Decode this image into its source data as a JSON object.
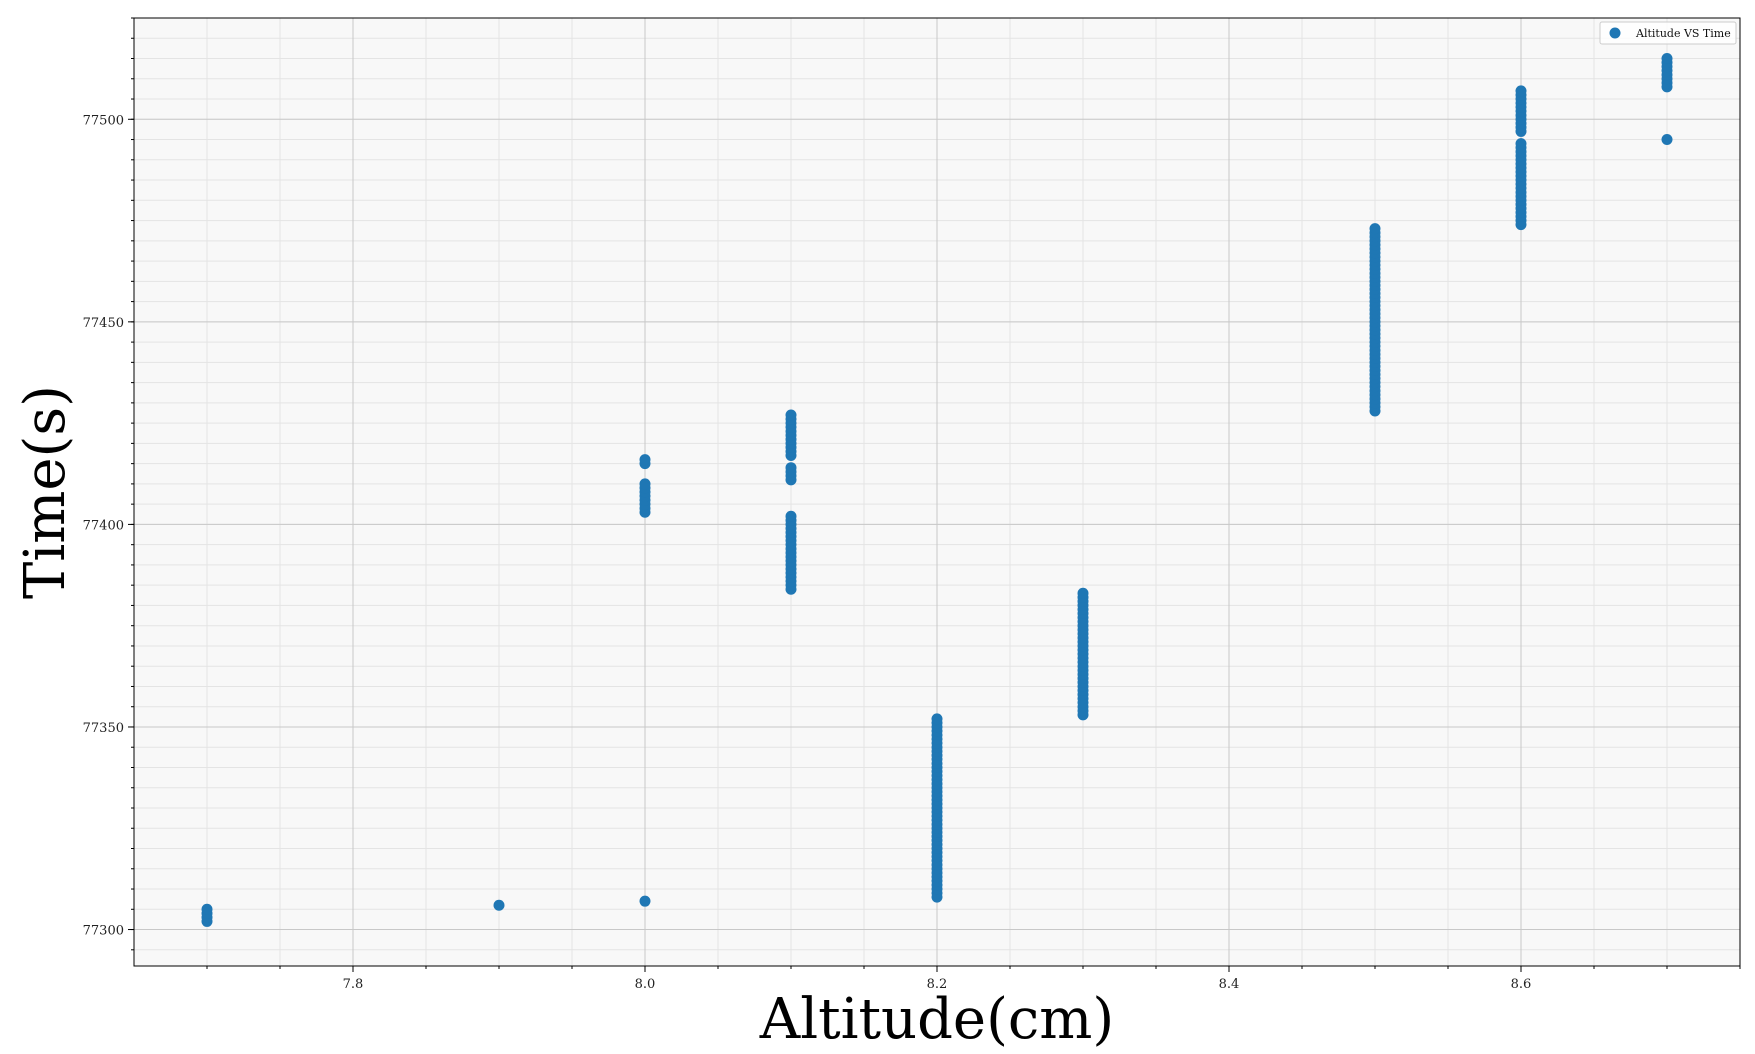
{
  "chart_data": {
    "type": "scatter",
    "title": "",
    "xlabel": "Altitude(cm)",
    "ylabel": "Time(s)",
    "xlim": [
      7.65,
      8.75
    ],
    "ylim": [
      77291,
      77525
    ],
    "xticks": [
      7.8,
      8.0,
      8.2,
      8.4,
      8.6
    ],
    "xtick_labels": [
      "7.8",
      "8.0",
      "8.2",
      "8.4",
      "8.6"
    ],
    "yticks": [
      77300,
      77350,
      77400,
      77450,
      77500
    ],
    "ytick_labels": [
      "77300",
      "77350",
      "77400",
      "77450",
      "77500"
    ],
    "grid": true,
    "minor_grid": true,
    "legend": {
      "position": "top-right",
      "entries": [
        "Altitude VS Time"
      ]
    },
    "colors": {
      "series": "#1f77b4",
      "background": "#f8f8f8",
      "grid_major": "#c8c8c8",
      "grid_minor": "#e4e4e4"
    },
    "series": [
      {
        "name": "Altitude VS Time",
        "points": [
          [
            7.7,
            77302
          ],
          [
            7.7,
            77303
          ],
          [
            7.7,
            77304
          ],
          [
            7.7,
            77305
          ],
          [
            7.9,
            77306
          ],
          [
            8.0,
            77307
          ],
          [
            8.0,
            77403
          ],
          [
            8.0,
            77404
          ],
          [
            8.0,
            77405
          ],
          [
            8.0,
            77406
          ],
          [
            8.0,
            77407
          ],
          [
            8.0,
            77408
          ],
          [
            8.0,
            77409
          ],
          [
            8.0,
            77410
          ],
          [
            8.0,
            77415
          ],
          [
            8.0,
            77416
          ],
          [
            8.1,
            77384
          ],
          [
            8.1,
            77385
          ],
          [
            8.1,
            77386
          ],
          [
            8.1,
            77387
          ],
          [
            8.1,
            77388
          ],
          [
            8.1,
            77389
          ],
          [
            8.1,
            77390
          ],
          [
            8.1,
            77391
          ],
          [
            8.1,
            77392
          ],
          [
            8.1,
            77393
          ],
          [
            8.1,
            77394
          ],
          [
            8.1,
            77395
          ],
          [
            8.1,
            77396
          ],
          [
            8.1,
            77397
          ],
          [
            8.1,
            77398
          ],
          [
            8.1,
            77399
          ],
          [
            8.1,
            77400
          ],
          [
            8.1,
            77401
          ],
          [
            8.1,
            77402
          ],
          [
            8.1,
            77411
          ],
          [
            8.1,
            77412
          ],
          [
            8.1,
            77413
          ],
          [
            8.1,
            77414
          ],
          [
            8.1,
            77417
          ],
          [
            8.1,
            77418
          ],
          [
            8.1,
            77419
          ],
          [
            8.1,
            77420
          ],
          [
            8.1,
            77421
          ],
          [
            8.1,
            77422
          ],
          [
            8.1,
            77423
          ],
          [
            8.1,
            77424
          ],
          [
            8.1,
            77425
          ],
          [
            8.1,
            77426
          ],
          [
            8.1,
            77427
          ],
          [
            8.2,
            77308
          ],
          [
            8.2,
            77309
          ],
          [
            8.2,
            77310
          ],
          [
            8.2,
            77311
          ],
          [
            8.2,
            77312
          ],
          [
            8.2,
            77313
          ],
          [
            8.2,
            77314
          ],
          [
            8.2,
            77315
          ],
          [
            8.2,
            77316
          ],
          [
            8.2,
            77317
          ],
          [
            8.2,
            77318
          ],
          [
            8.2,
            77319
          ],
          [
            8.2,
            77320
          ],
          [
            8.2,
            77321
          ],
          [
            8.2,
            77322
          ],
          [
            8.2,
            77323
          ],
          [
            8.2,
            77324
          ],
          [
            8.2,
            77325
          ],
          [
            8.2,
            77326
          ],
          [
            8.2,
            77327
          ],
          [
            8.2,
            77328
          ],
          [
            8.2,
            77329
          ],
          [
            8.2,
            77330
          ],
          [
            8.2,
            77331
          ],
          [
            8.2,
            77332
          ],
          [
            8.2,
            77333
          ],
          [
            8.2,
            77334
          ],
          [
            8.2,
            77335
          ],
          [
            8.2,
            77336
          ],
          [
            8.2,
            77337
          ],
          [
            8.2,
            77338
          ],
          [
            8.2,
            77339
          ],
          [
            8.2,
            77340
          ],
          [
            8.2,
            77341
          ],
          [
            8.2,
            77342
          ],
          [
            8.2,
            77343
          ],
          [
            8.2,
            77344
          ],
          [
            8.2,
            77345
          ],
          [
            8.2,
            77346
          ],
          [
            8.2,
            77347
          ],
          [
            8.2,
            77348
          ],
          [
            8.2,
            77349
          ],
          [
            8.2,
            77350
          ],
          [
            8.2,
            77351
          ],
          [
            8.2,
            77352
          ],
          [
            8.3,
            77353
          ],
          [
            8.3,
            77354
          ],
          [
            8.3,
            77355
          ],
          [
            8.3,
            77356
          ],
          [
            8.3,
            77357
          ],
          [
            8.3,
            77358
          ],
          [
            8.3,
            77359
          ],
          [
            8.3,
            77360
          ],
          [
            8.3,
            77361
          ],
          [
            8.3,
            77362
          ],
          [
            8.3,
            77363
          ],
          [
            8.3,
            77364
          ],
          [
            8.3,
            77365
          ],
          [
            8.3,
            77366
          ],
          [
            8.3,
            77367
          ],
          [
            8.3,
            77368
          ],
          [
            8.3,
            77369
          ],
          [
            8.3,
            77370
          ],
          [
            8.3,
            77371
          ],
          [
            8.3,
            77372
          ],
          [
            8.3,
            77373
          ],
          [
            8.3,
            77374
          ],
          [
            8.3,
            77375
          ],
          [
            8.3,
            77376
          ],
          [
            8.3,
            77377
          ],
          [
            8.3,
            77378
          ],
          [
            8.3,
            77379
          ],
          [
            8.3,
            77380
          ],
          [
            8.3,
            77381
          ],
          [
            8.3,
            77382
          ],
          [
            8.3,
            77383
          ],
          [
            8.5,
            77428
          ],
          [
            8.5,
            77429
          ],
          [
            8.5,
            77430
          ],
          [
            8.5,
            77431
          ],
          [
            8.5,
            77432
          ],
          [
            8.5,
            77433
          ],
          [
            8.5,
            77434
          ],
          [
            8.5,
            77435
          ],
          [
            8.5,
            77436
          ],
          [
            8.5,
            77437
          ],
          [
            8.5,
            77438
          ],
          [
            8.5,
            77439
          ],
          [
            8.5,
            77440
          ],
          [
            8.5,
            77441
          ],
          [
            8.5,
            77442
          ],
          [
            8.5,
            77443
          ],
          [
            8.5,
            77444
          ],
          [
            8.5,
            77445
          ],
          [
            8.5,
            77446
          ],
          [
            8.5,
            77447
          ],
          [
            8.5,
            77448
          ],
          [
            8.5,
            77449
          ],
          [
            8.5,
            77450
          ],
          [
            8.5,
            77451
          ],
          [
            8.5,
            77452
          ],
          [
            8.5,
            77453
          ],
          [
            8.5,
            77454
          ],
          [
            8.5,
            77455
          ],
          [
            8.5,
            77456
          ],
          [
            8.5,
            77457
          ],
          [
            8.5,
            77458
          ],
          [
            8.5,
            77459
          ],
          [
            8.5,
            77460
          ],
          [
            8.5,
            77461
          ],
          [
            8.5,
            77462
          ],
          [
            8.5,
            77463
          ],
          [
            8.5,
            77464
          ],
          [
            8.5,
            77465
          ],
          [
            8.5,
            77466
          ],
          [
            8.5,
            77467
          ],
          [
            8.5,
            77468
          ],
          [
            8.5,
            77469
          ],
          [
            8.5,
            77470
          ],
          [
            8.5,
            77471
          ],
          [
            8.5,
            77472
          ],
          [
            8.5,
            77473
          ],
          [
            8.6,
            77474
          ],
          [
            8.6,
            77475
          ],
          [
            8.6,
            77476
          ],
          [
            8.6,
            77477
          ],
          [
            8.6,
            77478
          ],
          [
            8.6,
            77479
          ],
          [
            8.6,
            77480
          ],
          [
            8.6,
            77481
          ],
          [
            8.6,
            77482
          ],
          [
            8.6,
            77483
          ],
          [
            8.6,
            77484
          ],
          [
            8.6,
            77485
          ],
          [
            8.6,
            77486
          ],
          [
            8.6,
            77487
          ],
          [
            8.6,
            77488
          ],
          [
            8.6,
            77489
          ],
          [
            8.6,
            77490
          ],
          [
            8.6,
            77491
          ],
          [
            8.6,
            77492
          ],
          [
            8.6,
            77493
          ],
          [
            8.6,
            77494
          ],
          [
            8.6,
            77497
          ],
          [
            8.6,
            77498
          ],
          [
            8.6,
            77499
          ],
          [
            8.6,
            77500
          ],
          [
            8.6,
            77501
          ],
          [
            8.6,
            77502
          ],
          [
            8.6,
            77503
          ],
          [
            8.6,
            77504
          ],
          [
            8.6,
            77505
          ],
          [
            8.6,
            77506
          ],
          [
            8.6,
            77507
          ],
          [
            8.7,
            77495
          ],
          [
            8.7,
            77508
          ],
          [
            8.7,
            77509
          ],
          [
            8.7,
            77510
          ],
          [
            8.7,
            77511
          ],
          [
            8.7,
            77512
          ],
          [
            8.7,
            77513
          ],
          [
            8.7,
            77514
          ],
          [
            8.7,
            77515
          ]
        ]
      }
    ]
  }
}
